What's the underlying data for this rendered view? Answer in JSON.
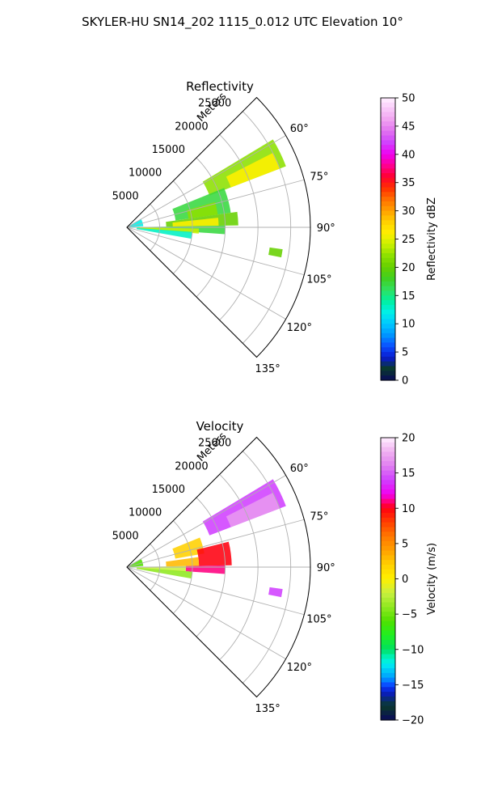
{
  "figure": {
    "title": "SKYLER-HU  SN14_202  1115_0.012 UTC Elevation 10°"
  },
  "chart_data": [
    {
      "type": "polar-sector",
      "title": "Reflectivity",
      "radial_label": "Meters",
      "theta_ticks": [
        "60°",
        "75°",
        "90°",
        "105°",
        "120°",
        "135°"
      ],
      "theta_tick_values": [
        60,
        75,
        90,
        105,
        120,
        135
      ],
      "theta_range": [
        45,
        135
      ],
      "radial_ticks": [
        "5000",
        "10000",
        "15000",
        "20000",
        "25000"
      ],
      "radial_tick_values": [
        5000,
        10000,
        15000,
        20000,
        25000
      ],
      "radial_max": 28000,
      "colorbar": {
        "label": "Reflectivity dBZ",
        "range": [
          0,
          50
        ],
        "ticks": [
          "0",
          "5",
          "10",
          "15",
          "20",
          "25",
          "30",
          "35",
          "40",
          "45",
          "50"
        ],
        "tick_values": [
          0,
          5,
          10,
          15,
          20,
          25,
          30,
          35,
          40,
          45,
          50
        ]
      },
      "echo_regions": [
        {
          "az": [
            59,
            69
          ],
          "r": [
            13500,
            26000
          ],
          "value": 22
        },
        {
          "az": [
            63,
            69
          ],
          "r": [
            17000,
            25000
          ],
          "value": 26
        },
        {
          "az": [
            68,
            82
          ],
          "r": [
            7500,
            16000
          ],
          "value": 17
        },
        {
          "az": [
            74,
            82
          ],
          "r": [
            9500,
            14000
          ],
          "value": 22
        },
        {
          "az": [
            82,
            89
          ],
          "r": [
            6000,
            17000
          ],
          "value": 20
        },
        {
          "az": [
            84,
            89
          ],
          "r": [
            7000,
            14000
          ],
          "value": 26
        },
        {
          "az": [
            89,
            94
          ],
          "r": [
            1500,
            15000
          ],
          "value": 17
        },
        {
          "az": [
            91,
            95
          ],
          "r": [
            2000,
            11000
          ],
          "value": 24
        },
        {
          "az": [
            94,
            100
          ],
          "r": [
            1500,
            10000
          ],
          "value": 13
        },
        {
          "az": [
            60,
            86
          ],
          "r": [
            200,
            2500
          ],
          "value": 12
        },
        {
          "az": [
            98,
            101
          ],
          "r": [
            22000,
            24000
          ],
          "value": 20
        }
      ]
    },
    {
      "type": "polar-sector",
      "title": "Velocity",
      "radial_label": "Meters",
      "theta_ticks": [
        "60°",
        "75°",
        "90°",
        "105°",
        "120°",
        "135°"
      ],
      "theta_tick_values": [
        60,
        75,
        90,
        105,
        120,
        135
      ],
      "theta_range": [
        45,
        135
      ],
      "radial_ticks": [
        "5000",
        "10000",
        "15000",
        "20000",
        "25000"
      ],
      "radial_tick_values": [
        5000,
        10000,
        15000,
        20000,
        25000
      ],
      "radial_max": 28000,
      "colorbar": {
        "label": "Velocity (m/s)",
        "range": [
          -20,
          20
        ],
        "ticks": [
          "−20",
          "−15",
          "−10",
          "−5",
          "0",
          "5",
          "10",
          "15",
          "20"
        ],
        "tick_values": [
          -20,
          -15,
          -10,
          -5,
          0,
          5,
          10,
          15,
          20
        ]
      },
      "echo_regions": [
        {
          "az": [
            59,
            69
          ],
          "r": [
            13500,
            26000
          ],
          "value": 14
        },
        {
          "az": [
            63,
            69
          ],
          "r": [
            17000,
            25000
          ],
          "value": 17
        },
        {
          "az": [
            68,
            80
          ],
          "r": [
            7500,
            12000
          ],
          "value": 2
        },
        {
          "az": [
            76,
            89
          ],
          "r": [
            11000,
            16000
          ],
          "value": 10
        },
        {
          "az": [
            82,
            89
          ],
          "r": [
            6000,
            11000
          ],
          "value": 3
        },
        {
          "az": [
            89,
            94
          ],
          "r": [
            9000,
            15000
          ],
          "value": 11
        },
        {
          "az": [
            89,
            95
          ],
          "r": [
            1500,
            9000
          ],
          "value": -2
        },
        {
          "az": [
            94,
            100
          ],
          "r": [
            1500,
            10000
          ],
          "value": -4
        },
        {
          "az": [
            60,
            86
          ],
          "r": [
            200,
            2500
          ],
          "value": -6
        },
        {
          "az": [
            98,
            101
          ],
          "r": [
            22000,
            24000
          ],
          "value": 14
        }
      ]
    }
  ]
}
